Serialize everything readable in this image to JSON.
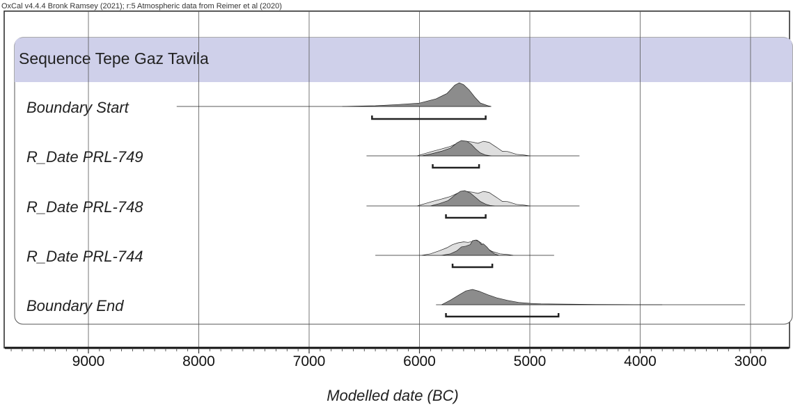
{
  "header": {
    "text": "OxCal v4.4.4 Bronk Ramsey (2021); r:5 Atmospheric data from Reimer et al (2020)"
  },
  "colors": {
    "sequence_band": "#cfd0ea",
    "posterior_fill": "#8c8c8c",
    "likelihood_fill": "#dedede",
    "grid": "#555555",
    "frame": "#222222"
  },
  "chart_data": {
    "type": "area",
    "xlabel": "Modelled date (BC)",
    "x_reversed": true,
    "xlim": [
      9700,
      2900
    ],
    "ticks": [
      9000,
      8000,
      7000,
      6000,
      5000,
      4000,
      3000
    ],
    "minor_tick_step": 100,
    "grid": true,
    "sequence": {
      "label": "Sequence Tepe Gaz Tavila"
    },
    "rows": [
      {
        "label": "Boundary Start",
        "line": [
          8200,
          5350
        ],
        "range": [
          6430,
          5400
        ],
        "likelihood": [],
        "posterior": [
          [
            6700,
            0
          ],
          [
            6400,
            0.03
          ],
          [
            6200,
            0.08
          ],
          [
            6000,
            0.14
          ],
          [
            5850,
            0.32
          ],
          [
            5750,
            0.55
          ],
          [
            5680,
            0.9
          ],
          [
            5640,
            1.0
          ],
          [
            5600,
            0.92
          ],
          [
            5550,
            0.7
          ],
          [
            5500,
            0.4
          ],
          [
            5450,
            0.15
          ],
          [
            5380,
            0.03
          ],
          [
            5350,
            0
          ]
        ]
      },
      {
        "label": "R_Date PRL-749",
        "line": [
          6480,
          4550
        ],
        "range": [
          5880,
          5460
        ],
        "likelihood": [
          [
            6020,
            0
          ],
          [
            5950,
            0.15
          ],
          [
            5880,
            0.3
          ],
          [
            5800,
            0.45
          ],
          [
            5720,
            0.62
          ],
          [
            5650,
            0.85
          ],
          [
            5580,
            0.95
          ],
          [
            5520,
            0.9
          ],
          [
            5470,
            0.82
          ],
          [
            5420,
            0.95
          ],
          [
            5370,
            0.88
          ],
          [
            5300,
            0.55
          ],
          [
            5250,
            0.3
          ],
          [
            5200,
            0.28
          ],
          [
            5120,
            0.1
          ],
          [
            5050,
            0.05
          ],
          [
            5000,
            0
          ]
        ],
        "posterior": [
          [
            5980,
            0
          ],
          [
            5900,
            0.12
          ],
          [
            5800,
            0.3
          ],
          [
            5720,
            0.5
          ],
          [
            5660,
            0.85
          ],
          [
            5620,
            1.0
          ],
          [
            5570,
            0.95
          ],
          [
            5530,
            0.75
          ],
          [
            5490,
            0.45
          ],
          [
            5450,
            0.2
          ],
          [
            5400,
            0.05
          ],
          [
            5350,
            0
          ]
        ]
      },
      {
        "label": "R_Date PRL-748",
        "line": [
          6480,
          4550
        ],
        "range": [
          5760,
          5400
        ],
        "likelihood": [
          [
            6020,
            0
          ],
          [
            5950,
            0.15
          ],
          [
            5880,
            0.3
          ],
          [
            5800,
            0.45
          ],
          [
            5720,
            0.62
          ],
          [
            5650,
            0.85
          ],
          [
            5580,
            0.95
          ],
          [
            5520,
            0.9
          ],
          [
            5470,
            0.82
          ],
          [
            5420,
            0.95
          ],
          [
            5370,
            0.88
          ],
          [
            5300,
            0.55
          ],
          [
            5250,
            0.3
          ],
          [
            5200,
            0.28
          ],
          [
            5120,
            0.1
          ],
          [
            5050,
            0.05
          ],
          [
            5000,
            0
          ]
        ],
        "posterior": [
          [
            5900,
            0
          ],
          [
            5820,
            0.15
          ],
          [
            5740,
            0.35
          ],
          [
            5680,
            0.7
          ],
          [
            5630,
            0.95
          ],
          [
            5590,
            1.0
          ],
          [
            5540,
            0.85
          ],
          [
            5490,
            0.55
          ],
          [
            5450,
            0.3
          ],
          [
            5400,
            0.12
          ],
          [
            5360,
            0.03
          ],
          [
            5320,
            0
          ]
        ]
      },
      {
        "label": "R_Date PRL-744",
        "line": [
          6400,
          4780
        ],
        "range": [
          5700,
          5340
        ],
        "likelihood": [
          [
            5980,
            0
          ],
          [
            5900,
            0.1
          ],
          [
            5820,
            0.3
          ],
          [
            5750,
            0.5
          ],
          [
            5700,
            0.7
          ],
          [
            5650,
            0.82
          ],
          [
            5600,
            0.88
          ],
          [
            5560,
            0.85
          ],
          [
            5520,
            0.9
          ],
          [
            5480,
            1.0
          ],
          [
            5440,
            0.8
          ],
          [
            5400,
            0.5
          ],
          [
            5340,
            0.25
          ],
          [
            5270,
            0.1
          ],
          [
            5200,
            0.05
          ],
          [
            5150,
            0
          ]
        ],
        "posterior": [
          [
            5800,
            0
          ],
          [
            5720,
            0.1
          ],
          [
            5660,
            0.3
          ],
          [
            5620,
            0.55
          ],
          [
            5580,
            0.6
          ],
          [
            5560,
            0.65
          ],
          [
            5540,
            0.7
          ],
          [
            5520,
            0.95
          ],
          [
            5490,
            1.0
          ],
          [
            5460,
            0.9
          ],
          [
            5440,
            0.7
          ],
          [
            5420,
            0.75
          ],
          [
            5390,
            0.55
          ],
          [
            5360,
            0.3
          ],
          [
            5320,
            0.1
          ],
          [
            5280,
            0
          ]
        ]
      },
      {
        "label": "Boundary End",
        "line": [
          5850,
          3050
        ],
        "range": [
          5760,
          4740
        ],
        "likelihood": [],
        "posterior": [
          [
            5800,
            0
          ],
          [
            5720,
            0.3
          ],
          [
            5640,
            0.65
          ],
          [
            5580,
            0.9
          ],
          [
            5520,
            1.0
          ],
          [
            5460,
            0.88
          ],
          [
            5380,
            0.65
          ],
          [
            5300,
            0.45
          ],
          [
            5200,
            0.28
          ],
          [
            5100,
            0.15
          ],
          [
            5000,
            0.09
          ],
          [
            4900,
            0.06
          ],
          [
            4700,
            0.04
          ],
          [
            4400,
            0.02
          ],
          [
            4050,
            0.01
          ],
          [
            3800,
            0
          ]
        ]
      }
    ]
  }
}
